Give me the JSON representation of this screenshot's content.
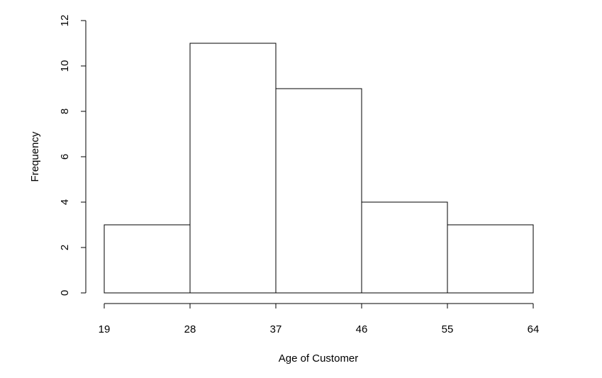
{
  "chart_data": {
    "type": "bar",
    "title": "",
    "xlabel": "Age of Customer",
    "ylabel": "Frequency",
    "bin_edges": [
      19,
      28,
      37,
      46,
      55,
      64
    ],
    "values": [
      3,
      11,
      9,
      4,
      3
    ],
    "x_ticks": [
      "19",
      "28",
      "37",
      "46",
      "55",
      "64"
    ],
    "y_ticks": [
      "0",
      "2",
      "4",
      "6",
      "8",
      "10",
      "12"
    ],
    "xlim": [
      19,
      64
    ],
    "ylim": [
      0,
      12
    ],
    "grid": false,
    "legend": "none"
  }
}
